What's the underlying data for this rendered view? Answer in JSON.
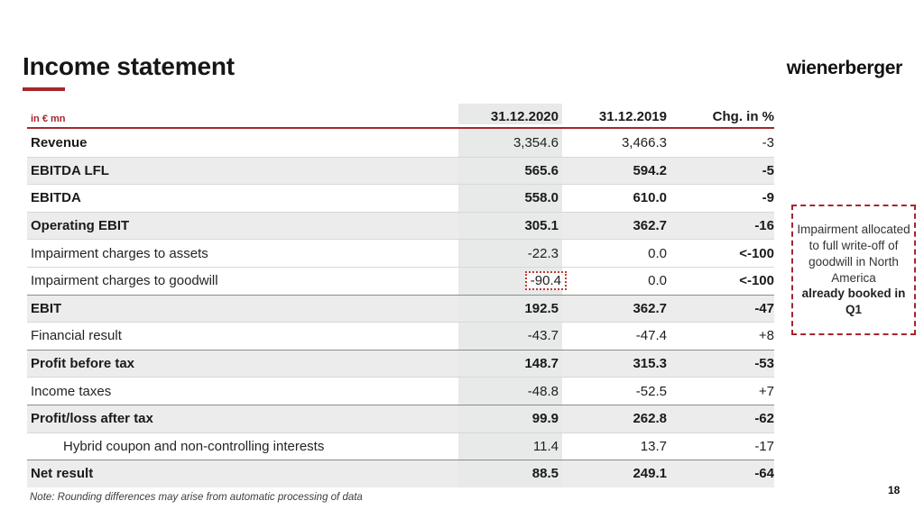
{
  "slide": {
    "title": "Income statement",
    "logo_text": "wienerberger",
    "page_number": "18",
    "note": "Note: Rounding differences may arise from automatic processing of data"
  },
  "colors": {
    "accent_red": "#a5262e",
    "row_shade": "#ececec",
    "column_band": "#e8e9e9"
  },
  "table": {
    "unit_label": "in € mn",
    "columns": [
      "31.12.2020",
      "31.12.2019",
      "Chg. in %"
    ],
    "rows": [
      {
        "label": "Revenue",
        "v2020": "3,354.6",
        "v2019": "3,466.3",
        "chg": "-3",
        "bold_label": true,
        "bold_values": false,
        "shaded": false,
        "indent": false,
        "chg_bold": false,
        "boxed_2020": false,
        "strong_top": false
      },
      {
        "label": "EBITDA LFL",
        "v2020": "565.6",
        "v2019": "594.2",
        "chg": "-5",
        "bold_label": true,
        "bold_values": true,
        "shaded": true,
        "indent": false,
        "chg_bold": false,
        "boxed_2020": false,
        "strong_top": false
      },
      {
        "label": "EBITDA",
        "v2020": "558.0",
        "v2019": "610.0",
        "chg": "-9",
        "bold_label": true,
        "bold_values": true,
        "shaded": false,
        "indent": false,
        "chg_bold": false,
        "boxed_2020": false,
        "strong_top": false
      },
      {
        "label": "Operating EBIT",
        "v2020": "305.1",
        "v2019": "362.7",
        "chg": "-16",
        "bold_label": true,
        "bold_values": true,
        "shaded": true,
        "indent": false,
        "chg_bold": false,
        "boxed_2020": false,
        "strong_top": false
      },
      {
        "label": "Impairment charges to assets",
        "v2020": "-22.3",
        "v2019": "0.0",
        "chg": "<-100",
        "bold_label": false,
        "bold_values": false,
        "shaded": false,
        "indent": false,
        "chg_bold": true,
        "boxed_2020": false,
        "strong_top": false
      },
      {
        "label": "Impairment charges to goodwill",
        "v2020": "-90.4",
        "v2019": "0.0",
        "chg": "<-100",
        "bold_label": false,
        "bold_values": false,
        "shaded": false,
        "indent": false,
        "chg_bold": true,
        "boxed_2020": true,
        "strong_top": false
      },
      {
        "label": "EBIT",
        "v2020": "192.5",
        "v2019": "362.7",
        "chg": "-47",
        "bold_label": true,
        "bold_values": true,
        "shaded": true,
        "indent": false,
        "chg_bold": false,
        "boxed_2020": false,
        "strong_top": true
      },
      {
        "label": "Financial result",
        "v2020": "-43.7",
        "v2019": "-47.4",
        "chg": "+8",
        "bold_label": false,
        "bold_values": false,
        "shaded": false,
        "indent": false,
        "chg_bold": false,
        "boxed_2020": false,
        "strong_top": false
      },
      {
        "label": "Profit before tax",
        "v2020": "148.7",
        "v2019": "315.3",
        "chg": "-53",
        "bold_label": true,
        "bold_values": true,
        "shaded": true,
        "indent": false,
        "chg_bold": false,
        "boxed_2020": false,
        "strong_top": true
      },
      {
        "label": "Income taxes",
        "v2020": "-48.8",
        "v2019": "-52.5",
        "chg": "+7",
        "bold_label": false,
        "bold_values": false,
        "shaded": false,
        "indent": false,
        "chg_bold": false,
        "boxed_2020": false,
        "strong_top": false
      },
      {
        "label": "Profit/loss after tax",
        "v2020": "99.9",
        "v2019": "262.8",
        "chg": "-62",
        "bold_label": true,
        "bold_values": true,
        "shaded": true,
        "indent": false,
        "chg_bold": false,
        "boxed_2020": false,
        "strong_top": true
      },
      {
        "label": "Hybrid coupon and non-controlling interests",
        "v2020": "11.4",
        "v2019": "13.7",
        "chg": "-17",
        "bold_label": false,
        "bold_values": false,
        "shaded": false,
        "indent": true,
        "chg_bold": false,
        "boxed_2020": false,
        "strong_top": false
      },
      {
        "label": "Net result",
        "v2020": "88.5",
        "v2019": "249.1",
        "chg": "-64",
        "bold_label": true,
        "bold_values": true,
        "shaded": true,
        "indent": false,
        "chg_bold": false,
        "boxed_2020": false,
        "strong_top": true
      }
    ]
  },
  "annotation": {
    "regular_text": "Impairment allocated to full write-off of goodwill in North America",
    "bold_text": "already booked in Q1"
  }
}
